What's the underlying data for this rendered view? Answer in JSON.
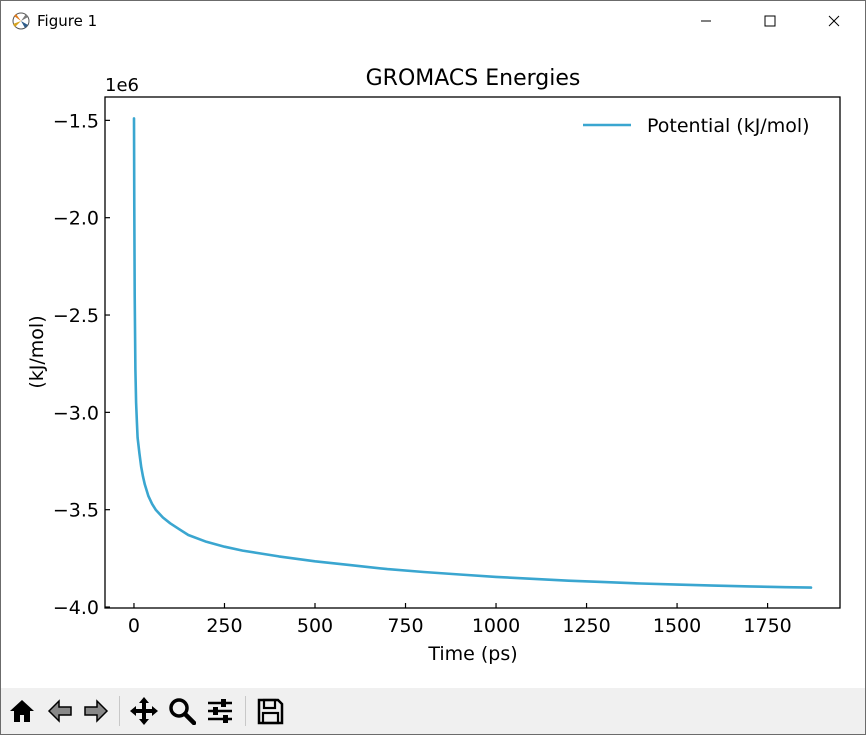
{
  "window": {
    "title": "Figure 1",
    "icons": [
      "matplotlib-icon",
      "minimize-icon",
      "maximize-icon",
      "close-icon"
    ]
  },
  "toolbar": {
    "buttons": [
      "home-icon",
      "back-icon",
      "forward-icon",
      "pan-icon",
      "zoom-icon",
      "configure-subplots-icon",
      "save-icon"
    ]
  },
  "chart_data": {
    "type": "line",
    "title": "GROMACS Energies",
    "xlabel": "Time (ps)",
    "ylabel": "(kJ/mol)",
    "offset_label": "1e6",
    "xlim": [
      -80,
      1950
    ],
    "ylim": [
      -4.005,
      -1.38
    ],
    "xticks": [
      0,
      250,
      500,
      750,
      1000,
      1250,
      1500,
      1750
    ],
    "xtick_labels": [
      "0",
      "250",
      "500",
      "750",
      "1000",
      "1250",
      "1500",
      "1750"
    ],
    "yticks": [
      -4.0,
      -3.5,
      -3.0,
      -2.5,
      -2.0,
      -1.5
    ],
    "ytick_labels": [
      "−4.0",
      "−3.5",
      "−3.0",
      "−2.5",
      "−2.0",
      "−1.5"
    ],
    "legend": "top-right",
    "grid": false,
    "series": [
      {
        "name": "Potential (kJ/mol)",
        "color": "#3aa6d0",
        "x": [
          0,
          1,
          2,
          4,
          6,
          8,
          10,
          15,
          20,
          25,
          30,
          40,
          50,
          60,
          70,
          80,
          100,
          125,
          150,
          200,
          250,
          300,
          350,
          400,
          500,
          600,
          700,
          800,
          900,
          1000,
          1100,
          1200,
          1300,
          1400,
          1500,
          1600,
          1700,
          1800,
          1870
        ],
        "y": [
          -1.49,
          -1.95,
          -2.4,
          -2.78,
          -2.95,
          -3.05,
          -3.13,
          -3.21,
          -3.28,
          -3.33,
          -3.37,
          -3.43,
          -3.47,
          -3.5,
          -3.52,
          -3.54,
          -3.57,
          -3.6,
          -3.63,
          -3.665,
          -3.69,
          -3.71,
          -3.725,
          -3.74,
          -3.765,
          -3.785,
          -3.805,
          -3.82,
          -3.833,
          -3.845,
          -3.855,
          -3.865,
          -3.872,
          -3.879,
          -3.885,
          -3.89,
          -3.894,
          -3.898,
          -3.9
        ]
      }
    ]
  }
}
